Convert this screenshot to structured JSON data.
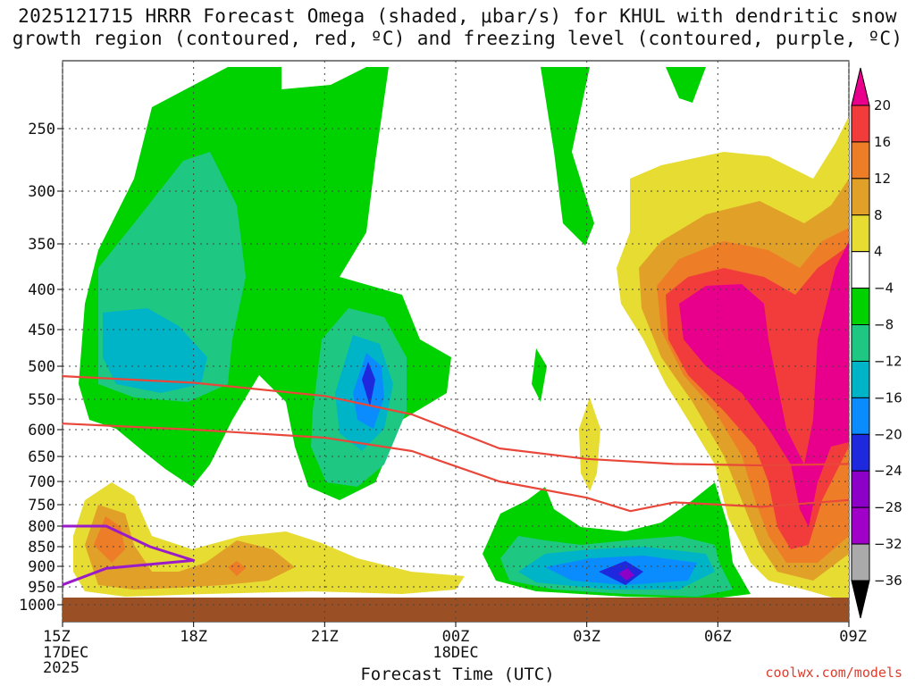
{
  "title": "2025121715 HRRR Forecast Omega (shaded, μbar/s) for KHUL with dendritic snow growth region (contoured, red, ºC) and freezing level (contoured, purple, ºC)",
  "footer": "coolwx.com/models",
  "chart_data": {
    "type": "contour-filled",
    "title": "2025121715 HRRR Forecast Omega (shaded, μbar/s) for KHUL with dendritic snow growth region (contoured, red, ºC) and freezing level (contoured, purple, ºC)",
    "xlabel": "Forecast Time (UTC)",
    "ylabel": "",
    "x_ticks": [
      {
        "label": "15Z",
        "sub": [
          "17DEC",
          "2025"
        ]
      },
      {
        "label": "18Z",
        "sub": []
      },
      {
        "label": "21Z",
        "sub": []
      },
      {
        "label": "00Z",
        "sub": [
          "18DEC"
        ]
      },
      {
        "label": "03Z",
        "sub": []
      },
      {
        "label": "06Z",
        "sub": []
      },
      {
        "label": "09Z",
        "sub": []
      }
    ],
    "x_range_hours": [
      0,
      18
    ],
    "y_ticks": [
      250,
      300,
      350,
      400,
      450,
      500,
      550,
      600,
      650,
      700,
      750,
      800,
      850,
      900,
      950,
      1000
    ],
    "y_axis": "pressure (hPa), reversed",
    "grid": true,
    "colorbar": {
      "levels": [
        "20",
        "16",
        "12",
        "8",
        "4",
        "−4",
        "−8",
        "−12",
        "−16",
        "−20",
        "−24",
        "−28",
        "−32",
        "−36"
      ],
      "colors": [
        "#e8008c",
        "#f23c3c",
        "#ee7d28",
        "#e1a028",
        "#e6dc32",
        "#ffffff",
        "#00d200",
        "#1ec882",
        "#00b4c8",
        "#0a8cff",
        "#1e28dc",
        "#8c00c8",
        "#a000c8",
        "#aaaaaa"
      ]
    },
    "regions": [
      {
        "name": "lift-green-15-00Z",
        "level": "−4 to −8",
        "area": "15Z–00Z, 220–710 hPa"
      },
      {
        "name": "lift-teal-16Z",
        "level": "−8 to −12",
        "area": "15Z–18Z, 270–620 hPa"
      },
      {
        "name": "lift-blue-22Z",
        "level": "−20 to −24",
        "min_near": "22Z, 520 hPa"
      },
      {
        "name": "sink-pink-07Z",
        "level": "> 16",
        "area": "06Z–09Z, 390–880 hPa"
      },
      {
        "name": "lift-purple-04Z",
        "level": "< −24",
        "min_near": "04Z, 915 hPa"
      }
    ],
    "series": [
      {
        "name": "dendritic growth top",
        "color": "#e8473a",
        "x_hours": [
          0,
          3,
          6,
          8,
          10,
          12,
          14,
          16,
          18
        ],
        "y_hpa": [
          515,
          525,
          545,
          575,
          635,
          655,
          665,
          668,
          665
        ]
      },
      {
        "name": "dendritic growth bottom",
        "color": "#e8473a",
        "x_hours": [
          0,
          3,
          6,
          8,
          10,
          12,
          13,
          14,
          16,
          18
        ],
        "y_hpa": [
          590,
          600,
          615,
          640,
          700,
          735,
          765,
          745,
          755,
          740
        ]
      },
      {
        "name": "freezing level",
        "color": "#9a1cc8",
        "x_hours": [
          0,
          1,
          2,
          3,
          1,
          0
        ],
        "y_hpa": [
          800,
          800,
          850,
          885,
          905,
          945
        ]
      }
    ]
  }
}
